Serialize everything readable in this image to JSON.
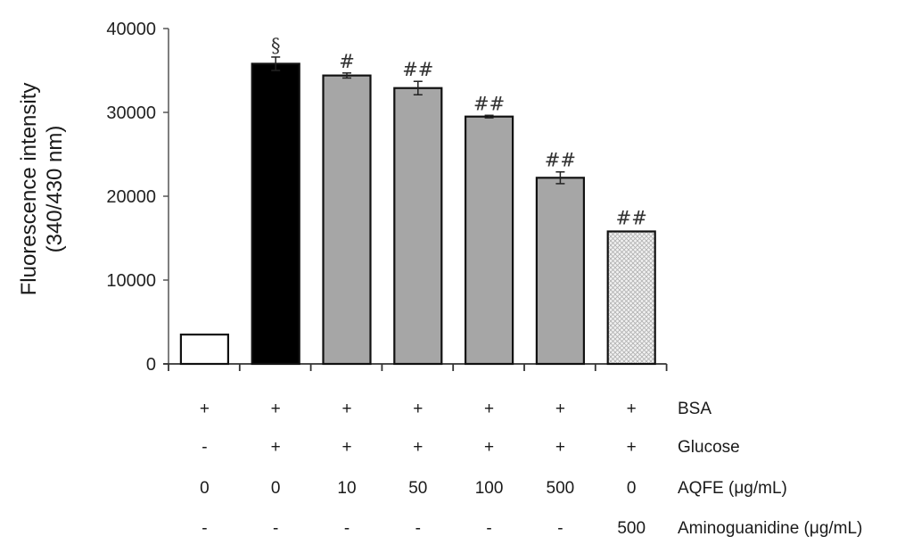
{
  "chart_data": {
    "type": "bar",
    "title": "",
    "xlabel": "",
    "ylabel": "Fluorescence intensity (340/430 nm)",
    "ylabel_lines": [
      "Fluorescence intensity",
      "(340/430 nm)"
    ],
    "ylim": [
      0,
      40000
    ],
    "yticks": [
      0,
      10000,
      20000,
      30000,
      40000
    ],
    "ytick_labels": [
      "0",
      "10000",
      "20000",
      "30000",
      "40000"
    ],
    "grid": false,
    "legend": null,
    "categories": [
      "BSA",
      "BSA+Glucose",
      "AQFE 10",
      "AQFE 50",
      "AQFE 100",
      "AQFE 500",
      "Aminoguanidine 500"
    ],
    "values": [
      3500,
      35800,
      34400,
      32900,
      29500,
      22200,
      15800
    ],
    "errors": [
      0,
      800,
      300,
      800,
      150,
      700,
      0
    ],
    "bar_fills": [
      "#ffffff",
      "#000000",
      "#a6a6a6",
      "#a6a6a6",
      "#a6a6a6",
      "#a6a6a6",
      "crosshatch"
    ],
    "annotations": [
      "",
      "§",
      "#",
      "##",
      "##",
      "##",
      "##"
    ],
    "conditions_table": {
      "rows": [
        {
          "label": "BSA",
          "values": [
            "+",
            "+",
            "+",
            "+",
            "+",
            "+",
            "+"
          ]
        },
        {
          "label": "Glucose",
          "values": [
            "-",
            "+",
            "+",
            "+",
            "+",
            "+",
            "+"
          ]
        },
        {
          "label": "AQFE (μg/mL)",
          "values": [
            "0",
            "0",
            "10",
            "50",
            "100",
            "500",
            "0"
          ]
        },
        {
          "label": "Aminoguanidine (μg/mL)",
          "values": [
            "-",
            "-",
            "-",
            "-",
            "-",
            "-",
            "500"
          ]
        }
      ]
    }
  }
}
